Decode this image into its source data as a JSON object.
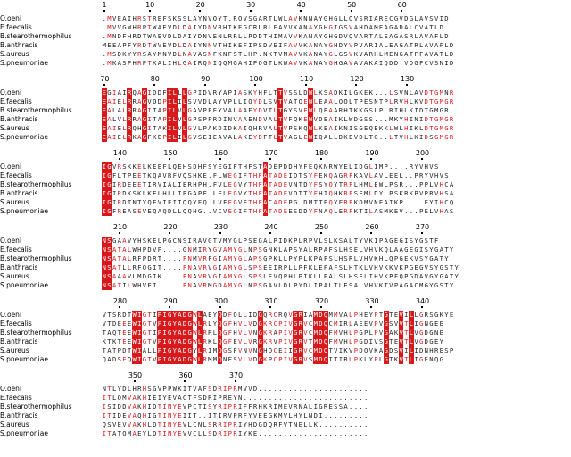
{
  "species": [
    "O.oeni",
    "E.faecalis",
    "B.stearothermophilus",
    "B.anthracis",
    "S.aureus",
    "S.pneumoniae"
  ],
  "colors": {
    "identical_bg": "#d7191c",
    "identical_text": "#ffffff",
    "similar_text": "#d7191c",
    "frame": "#6a7fd6",
    "normal_text": "#222222"
  },
  "blocks": [
    {
      "numbers": [
        {
          "label": "1",
          "col": 1
        },
        {
          "label": "10",
          "col": 10
        },
        {
          "label": "20",
          "col": 20
        },
        {
          "label": "30",
          "col": 30
        },
        {
          "label": "40",
          "col": 40
        },
        {
          "label": "50",
          "col": 50
        },
        {
          "label": "60",
          "col": 60
        }
      ],
      "sequences": [
        ".MVEAIHRSTREFSKSSLAYNVQYT.RQVSGARTLWLAVKNNAYGHGLLQVSRIARECGVDGLAVSVID",
        ".MVVGWHRPTWAEVDLDAIYDNVRHIKEGCRLRLFAVVKANAYGHGIGSVAHDAMEAGADALCVATLD",
        ".MNDFHRDTWAEVDLDAIYDNVENLRRLLPDDTHIMAVVKANAYGHGDVQVARTALEAGASRLAVAFLD",
        "MEEAPFYRDTWVEVDLDAIYNNVTHIKEFIPSDVEIFAVVKANAYGHDYVPVARIALEAGATRLAVAFLD",
        ".MSDKYYRSAYMNVDLNAVASNFKNFSTLHP.NKTVMAVVKANAYGLGSVKVARHLMENGATFFAVATLD",
        ".MKASPHRPTKALIHLGAIRQNIQQMGAHIPQGTLKWAVVKANAYGHGAVAVAKAIQDD.VDGFCVSNID"
      ]
    },
    {
      "numbers": [
        {
          "label": "70",
          "col": 1
        },
        {
          "label": "80",
          "col": 11
        },
        {
          "label": "90",
          "col": 21
        },
        {
          "label": "100",
          "col": 31
        },
        {
          "label": "110",
          "col": 41
        },
        {
          "label": "120",
          "col": 51
        },
        {
          "label": "130",
          "col": 61
        }
      ],
      "sequences": [
        "EGIAIRQAGIDDFILLLGPIDVRYAPIASKYHFLTTVSSLDWLKSADKILGKEK...LSVNLAVDTGMNR",
        "EAIELRRAGVQDPILILSVVDLAYVPLLIQYDLSVTVATQEWLEAALQQLTPESNTPLRVHLKVDTGMGR",
        "EALALRRAGITAPILVLGAVPPEYVALAAEYDVTLTGYSVEWLQEAARHTKKGSLPLRIHLKIDTGMGR",
        "EALVLRRAGITAPILVLGPSPPRDINVAAENDVALTVFQKEWVDEAIKLWDGSS...MKYHINIDTGMGR",
        "EAIELRQHGITAKILVLGVLPAKDIDKAIQHRVALTVPSKQWLKEAIKNISGEQEKKLWLHIKLDTGMGR",
        "EAIELRKAGFKEPILILGVSEIEAVALAKEYDFTLTVAGLEWIQALLDKEVDLTG..LTVHLKIDSGMGR"
      ]
    },
    {
      "numbers": [
        {
          "label": "140",
          "col": 4
        },
        {
          "label": "150",
          "col": 14
        },
        {
          "label": "160",
          "col": 24
        },
        {
          "label": "170",
          "col": 34
        },
        {
          "label": "180",
          "col": 44
        },
        {
          "label": "190",
          "col": 54
        },
        {
          "label": "200",
          "col": 64
        }
      ],
      "sequences": [
        "IGVRSKKELKEEFLQEHSDHFSYEGIFTHFSTADEPDDHYFEQKNRWYELIDGLIMP....RYVHVS",
        "IGFLTPEETKQAVRFVQSHKE.FLWEGIFTHFATADEIDTSYFEKQAGRFKAVLAVLEEL..PRYVHVS",
        "IGIRDEEETIRVIALIERHPH.FVLEGVYTHFATADEVNTDYFSYQYTRFLHMLEWLPSR...PPLVHCA",
        "IGIRDKSKLKELHLLIEGAPF.LELEGVYTHFATADEVDTTYFHIQHKRFSEMLDYLPSKRKPVPRVHSA",
        "IGIRDTNTYQEVIEIIQQYEQ.LVFEGVFTHFACADEPG.DMTTEQYERFKDMVNEAIKP....EYIHCQ",
        "IGFREASEVEQAQDLLQQHG..VCVEGIFTHFATADEESDDYFNAQLERFKTILASMKEV...PELVHAS"
      ]
    },
    {
      "numbers": [
        {
          "label": "210",
          "col": 4
        },
        {
          "label": "220",
          "col": 14
        },
        {
          "label": "230",
          "col": 24
        },
        {
          "label": "240",
          "col": 34
        },
        {
          "label": "250",
          "col": 44
        },
        {
          "label": "260",
          "col": 54
        },
        {
          "label": "270",
          "col": 64
        }
      ],
      "sequences": [
        "NSGAAVYHSKELPGCNSIRAVGTVMYGLPSEGALPIDKPLRPVLSLKSALTYVKIPAGEGISYGSTF",
        "NSATALWHPDVP....GNMIRYGVAMYGLNPSGNKLAPSYALRPAFSLHSELVHVKQLAAGEGISYGATY",
        "NSATALRFPDRT....FNMVRFGIAMYGLAPSGPKLLPYPLKPAFSLHSRLVHVKHLQPGEKVSYGATY",
        "NSATLLRFQGIT....FNAVRVGIAMYGLSPSEEIRPLLPFKLEPAFSLHTKLVHVKKVKPGEGVSYGSTY",
        "NSAAAVLMDGIK....FNAVRVGIAMYGLSPSLEVQPHLPIKLLPALSLHSELIHVKPFQPGDAVGYGATY",
        "NSATILWHVEI.....FNAVRMGDAMYGLNPSGAVLDLPYDLIPALTLESALVHVKTVPAGACMGYGSTY"
      ]
    },
    {
      "numbers": [
        {
          "label": "280",
          "col": 4
        },
        {
          "label": "290",
          "col": 14
        },
        {
          "label": "300",
          "col": 24
        },
        {
          "label": "310",
          "col": 34
        },
        {
          "label": "320",
          "col": 44
        },
        {
          "label": "330",
          "col": 54
        },
        {
          "label": "340",
          "col": 64
        }
      ],
      "sequences": [
        "VTSRDTWIGTIPIGYADGWLAEYQDFQLLIDGQRCRQVGRIAMDQMMVALPHEYPTGTEVILLGRSGKYE",
        "VTDEEEWIGTVPIGYADGWLRLYQGFHVLVDGKRCPIVGRVCMDQCMIRLAEEVPVGSVVTLIGNGEE",
        "TAQTEEWIGTIPIGYADGWLRRLQGFHVLVNGKRAPIVGRVCMDQFMVHLPGPLPVGAKVTLVGDGNE",
        "KTKTEEWIGTVPIGYADGWLRKLQGFEVLVRGKRVPIVGRVTMDQFMVHLPGDIVSGTEVTLVGDGEY",
        "TATPDTWIALLPIGYADGYLRIMQGSFVNVNGHQCEIIGRVCMDQTVIKVPDQVKAGDSVILIDNHRESP",
        "QADSEQWIGTVPIGYADGWLRMMQNESVLVDGKPCPIVGRVSMDQITIRLPKLYPLGTKVTLIGENQG"
      ]
    },
    {
      "numbers": [
        {
          "label": "350",
          "col": 7
        },
        {
          "label": "360",
          "col": 17
        },
        {
          "label": "370",
          "col": 27
        }
      ],
      "sequences": [
        "NTLYDLHRHSGVPPWKITVAFSDRIPRMVVD......................",
        "ITLQMVAKHIEIYEVACTFSDRIPREYN.........................",
        "ISIDDVAKHIDTINYEVPCTISYRIPRIFFRHKRIMEVRNALIGRESSA....",
        "ITIDEVAQHIGTINYEIIT..ITIRVPRFYVEEGKMVLHYLNDI.........",
        "QSVEVVAKHLDTINYEVLCNLSRRIPRIYHDGDQRFVTNELLK..........",
        "ITATQMAEYLDTINYEVVCLLSDRIPRIYKE......................"
      ]
    }
  ]
}
